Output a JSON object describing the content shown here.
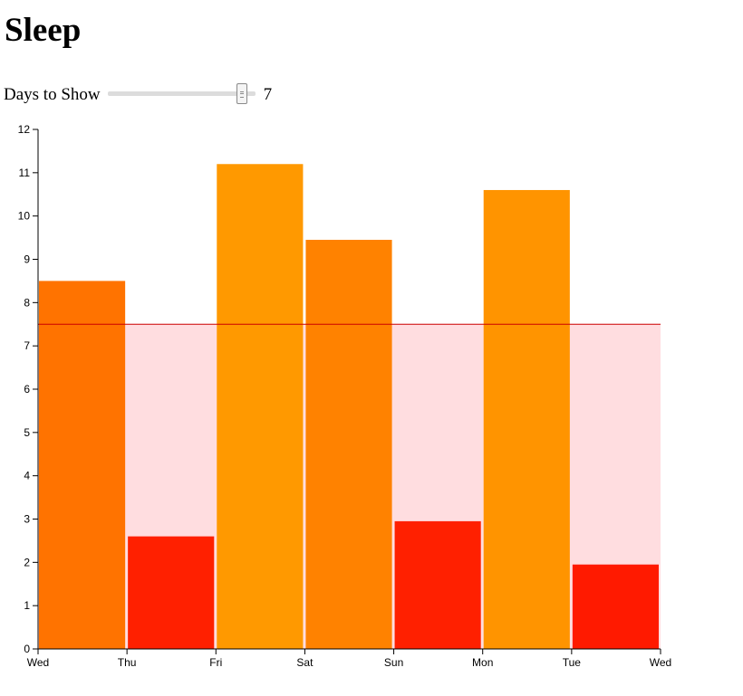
{
  "page": {
    "title": "Sleep"
  },
  "control": {
    "label": "Days to Show",
    "value": "7",
    "slider_min": 1,
    "slider_max": 7,
    "slider_value": 7
  },
  "chart_data": {
    "type": "bar",
    "categories": [
      "Wed",
      "Thu",
      "Fri",
      "Sat",
      "Sun",
      "Mon",
      "Tue"
    ],
    "x_ticks": [
      "Wed",
      "Thu",
      "Fri",
      "Sat",
      "Sun",
      "Mon",
      "Tue",
      "Wed"
    ],
    "values": [
      8.5,
      2.6,
      11.2,
      9.45,
      2.95,
      10.6,
      1.95
    ],
    "bar_colors": [
      "#ff7300",
      "#ff2000",
      "#ff9900",
      "#ff8200",
      "#ff2000",
      "#ff9400",
      "#ff1a00"
    ],
    "y_ticks": [
      0,
      1,
      2,
      3,
      4,
      5,
      6,
      7,
      8,
      9,
      10,
      11,
      12
    ],
    "ylim": [
      0,
      12
    ],
    "target": 7.5,
    "target_line_color": "#cc0000",
    "target_band_color": "#ffdde0",
    "grid": false,
    "legend": "none"
  }
}
